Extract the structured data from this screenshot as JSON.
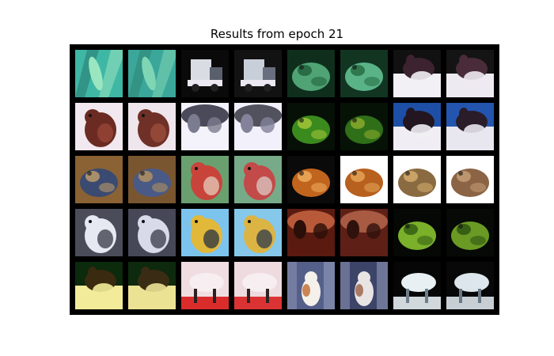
{
  "title": "Results from epoch 21",
  "colors": {
    "background": "#ffffff",
    "grid_background": "#000000",
    "text": "#000000"
  },
  "grid": {
    "rows": 5,
    "cols": 8,
    "cells": [
      {
        "row": 0,
        "col": 0,
        "subject": "green-leaf-frog",
        "bg": "#3fb7a5",
        "main": "#9ae6c0",
        "accent": "#2a7d72",
        "shape": "diag"
      },
      {
        "row": 0,
        "col": 1,
        "subject": "green-leaf-frog-recon",
        "bg": "#3aa79a",
        "main": "#7fd6b5",
        "accent": "#2e8577",
        "shape": "diag"
      },
      {
        "row": 0,
        "col": 2,
        "subject": "truck",
        "bg": "#0a0a0a",
        "main": "#d9dde3",
        "accent": "#5a5f6e",
        "shape": "truck"
      },
      {
        "row": 0,
        "col": 3,
        "subject": "truck-recon",
        "bg": "#121212",
        "main": "#c9cfd9",
        "accent": "#6a6f80",
        "shape": "truck"
      },
      {
        "row": 0,
        "col": 4,
        "subject": "green-frog",
        "bg": "#0f2f1c",
        "main": "#4fa374",
        "accent": "#1f5e3b",
        "shape": "blob"
      },
      {
        "row": 0,
        "col": 5,
        "subject": "green-frog-recon",
        "bg": "#123522",
        "main": "#5ab387",
        "accent": "#24683f",
        "shape": "blob"
      },
      {
        "row": 0,
        "col": 6,
        "subject": "dog-on-white",
        "bg": "#111111",
        "main": "#f2eff5",
        "accent": "#3d2230",
        "shape": "dog"
      },
      {
        "row": 0,
        "col": 7,
        "subject": "dog-on-white-recon",
        "bg": "#141414",
        "main": "#eeeaf2",
        "accent": "#4a2b3a",
        "shape": "dog"
      },
      {
        "row": 1,
        "col": 0,
        "subject": "brown-bird",
        "bg": "#f1e9ef",
        "main": "#6b2b22",
        "accent": "#9e4a3a",
        "shape": "bird"
      },
      {
        "row": 1,
        "col": 1,
        "subject": "brown-bird-recon",
        "bg": "#eee6ec",
        "main": "#6f3027",
        "accent": "#a3513f",
        "shape": "bird"
      },
      {
        "row": 1,
        "col": 2,
        "subject": "grey-animal",
        "bg": "#f4f2fb",
        "main": "#4a4a5a",
        "accent": "#7c7c90",
        "shape": "top"
      },
      {
        "row": 1,
        "col": 3,
        "subject": "grey-animal-recon",
        "bg": "#f2f0fa",
        "main": "#52525f",
        "accent": "#82829a",
        "shape": "top"
      },
      {
        "row": 1,
        "col": 4,
        "subject": "leaf-frog-dark",
        "bg": "#061006",
        "main": "#3b8a1e",
        "accent": "#a9c83a",
        "shape": "blob"
      },
      {
        "row": 1,
        "col": 5,
        "subject": "leaf-frog-dark-recon",
        "bg": "#071207",
        "main": "#2f6f18",
        "accent": "#8fae2e",
        "shape": "blob"
      },
      {
        "row": 1,
        "col": 6,
        "subject": "dog-blue-bg",
        "bg": "#1e4fa6",
        "main": "#f0eef4",
        "accent": "#231620",
        "shape": "dog"
      },
      {
        "row": 1,
        "col": 7,
        "subject": "dog-blue-bg-recon",
        "bg": "#2355ae",
        "main": "#e8e6ee",
        "accent": "#2a1c28",
        "shape": "dog"
      },
      {
        "row": 2,
        "col": 0,
        "subject": "frog-on-wood",
        "bg": "#8a6234",
        "main": "#3b4a70",
        "accent": "#c4a06a",
        "shape": "blob"
      },
      {
        "row": 2,
        "col": 1,
        "subject": "frog-on-wood-recon",
        "bg": "#7a5630",
        "main": "#4a5a86",
        "accent": "#b7935f",
        "shape": "blob"
      },
      {
        "row": 2,
        "col": 2,
        "subject": "rooster",
        "bg": "#6aa070",
        "main": "#c8443a",
        "accent": "#e6d6c4",
        "shape": "bird"
      },
      {
        "row": 2,
        "col": 3,
        "subject": "rooster-recon",
        "bg": "#76aa88",
        "main": "#c24a48",
        "accent": "#ddd3cf",
        "shape": "bird"
      },
      {
        "row": 2,
        "col": 4,
        "subject": "orange-frog",
        "bg": "#0a0a0a",
        "main": "#c0641e",
        "accent": "#f0b060",
        "shape": "blob"
      },
      {
        "row": 2,
        "col": 5,
        "subject": "orange-frog-recon",
        "bg": "#ffffff",
        "main": "#b8601e",
        "accent": "#e8a85a",
        "shape": "blob"
      },
      {
        "row": 2,
        "col": 6,
        "subject": "toad-white",
        "bg": "#ffffff",
        "main": "#8a6a40",
        "accent": "#d8b070",
        "shape": "blob"
      },
      {
        "row": 2,
        "col": 7,
        "subject": "toad-white-recon",
        "bg": "#ffffff",
        "main": "#8a6444",
        "accent": "#c8a078",
        "shape": "blob"
      },
      {
        "row": 3,
        "col": 0,
        "subject": "white-bird-grey",
        "bg": "#4a4c5a",
        "main": "#e6e8f2",
        "accent": "#2a2c38",
        "shape": "bird"
      },
      {
        "row": 3,
        "col": 1,
        "subject": "white-bird-grey-recon",
        "bg": "#464858",
        "main": "#d8daea",
        "accent": "#2c2e3c",
        "shape": "bird"
      },
      {
        "row": 3,
        "col": 2,
        "subject": "yellow-bird-sky",
        "bg": "#7cc4ee",
        "main": "#e2b83a",
        "accent": "#1b2a40",
        "shape": "bird"
      },
      {
        "row": 3,
        "col": 3,
        "subject": "yellow-bird-sky-recon",
        "bg": "#86c8ea",
        "main": "#dcb444",
        "accent": "#22304a",
        "shape": "bird"
      },
      {
        "row": 3,
        "col": 4,
        "subject": "horse-red",
        "bg": "#5a1a10",
        "main": "#b85a3a",
        "accent": "#2a0e08",
        "shape": "top"
      },
      {
        "row": 3,
        "col": 5,
        "subject": "horse-red-recon",
        "bg": "#5e2016",
        "main": "#a85a42",
        "accent": "#30120c",
        "shape": "top"
      },
      {
        "row": 3,
        "col": 6,
        "subject": "green-frog-dark",
        "bg": "#050805",
        "main": "#7ab02a",
        "accent": "#2f5a12",
        "shape": "blob"
      },
      {
        "row": 3,
        "col": 7,
        "subject": "green-frog-dark-recon",
        "bg": "#060906",
        "main": "#6a9a24",
        "accent": "#2a5010",
        "shape": "blob"
      },
      {
        "row": 4,
        "col": 0,
        "subject": "yellow-dog",
        "bg": "#0c2a0c",
        "main": "#f2ec9a",
        "accent": "#3a2a10",
        "shape": "dog"
      },
      {
        "row": 4,
        "col": 1,
        "subject": "yellow-dog-recon",
        "bg": "#0e2a0e",
        "main": "#ece294",
        "accent": "#3a2c14",
        "shape": "dog"
      },
      {
        "row": 4,
        "col": 2,
        "subject": "pink-horse-red",
        "bg": "#f0dde2",
        "main": "#d81818",
        "accent": "#2a2020",
        "shape": "horse"
      },
      {
        "row": 4,
        "col": 3,
        "subject": "pink-horse-red-recon",
        "bg": "#eedbe0",
        "main": "#d82020",
        "accent": "#2c2222",
        "shape": "horse"
      },
      {
        "row": 4,
        "col": 4,
        "subject": "cat-street",
        "bg": "#55608a",
        "main": "#f4f0ea",
        "accent": "#c06a30",
        "shape": "cat"
      },
      {
        "row": 4,
        "col": 5,
        "subject": "cat-street-recon",
        "bg": "#3c4468",
        "main": "#e8e4e4",
        "accent": "#9a6044",
        "shape": "cat"
      },
      {
        "row": 4,
        "col": 6,
        "subject": "white-horse-dark",
        "bg": "#060606",
        "main": "#e8f0f4",
        "accent": "#6e7e8a",
        "shape": "horse"
      },
      {
        "row": 4,
        "col": 7,
        "subject": "white-horse-dark-recon",
        "bg": "#080808",
        "main": "#dde6ec",
        "accent": "#6a7884",
        "shape": "horse"
      }
    ]
  }
}
